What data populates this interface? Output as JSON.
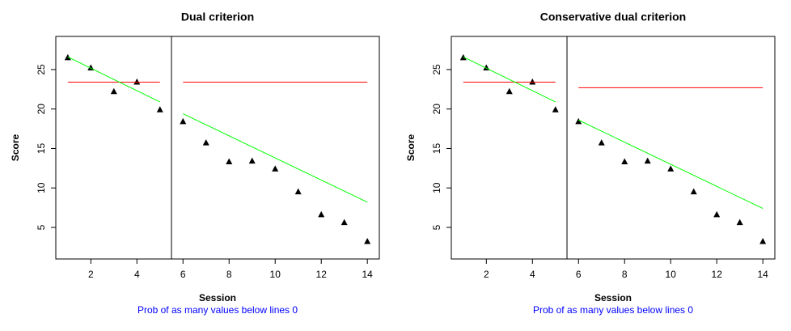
{
  "chart_data": [
    {
      "type": "scatter",
      "title": "Dual criterion",
      "x_label": "Session",
      "y_label": "Score",
      "note": "Prob of as many values below lines 0",
      "note_color": "#0000ff",
      "xlim": [
        0.48,
        14.52
      ],
      "ylim": [
        1.0,
        29.2
      ],
      "xticks": [
        2,
        4,
        6,
        8,
        10,
        12,
        14
      ],
      "yticks": [
        5,
        10,
        15,
        20,
        25
      ],
      "vlines": [
        5.5
      ],
      "series": [
        {
          "type": "scatter",
          "color": "#000000",
          "x": [
            1,
            2,
            3,
            4,
            5,
            6,
            7,
            8,
            9,
            10,
            11,
            12,
            13,
            14
          ],
          "values": [
            26.5,
            25.2,
            22.2,
            23.4,
            19.9,
            18.4,
            15.7,
            13.3,
            13.4,
            12.4,
            9.5,
            6.6,
            5.6,
            3.2
          ]
        },
        {
          "type": "line",
          "color": "#ff0000",
          "x": [
            1,
            5
          ],
          "values": [
            23.4,
            23.4
          ]
        },
        {
          "type": "line",
          "color": "#00ff00",
          "x": [
            1,
            5
          ],
          "values": [
            26.6,
            20.9
          ]
        },
        {
          "type": "line",
          "color": "#ff0000",
          "x": [
            6,
            14
          ],
          "values": [
            23.4,
            23.4
          ]
        },
        {
          "type": "line",
          "color": "#00ff00",
          "x": [
            6,
            14
          ],
          "values": [
            19.4,
            8.2
          ]
        }
      ]
    },
    {
      "type": "scatter",
      "title": "Conservative dual criterion",
      "x_label": "Session",
      "y_label": "Score",
      "note": "Prob of as many values below lines 0",
      "note_color": "#0000ff",
      "xlim": [
        0.48,
        14.52
      ],
      "ylim": [
        1.0,
        29.2
      ],
      "xticks": [
        2,
        4,
        6,
        8,
        10,
        12,
        14
      ],
      "yticks": [
        5,
        10,
        15,
        20,
        25
      ],
      "vlines": [
        5.5
      ],
      "series": [
        {
          "type": "scatter",
          "color": "#000000",
          "x": [
            1,
            2,
            3,
            4,
            5,
            6,
            7,
            8,
            9,
            10,
            11,
            12,
            13,
            14
          ],
          "values": [
            26.5,
            25.2,
            22.2,
            23.4,
            19.9,
            18.4,
            15.7,
            13.3,
            13.4,
            12.4,
            9.5,
            6.6,
            5.6,
            3.2
          ]
        },
        {
          "type": "line",
          "color": "#ff0000",
          "x": [
            1,
            5
          ],
          "values": [
            23.4,
            23.4
          ]
        },
        {
          "type": "line",
          "color": "#00ff00",
          "x": [
            1,
            5
          ],
          "values": [
            26.6,
            20.9
          ]
        },
        {
          "type": "line",
          "color": "#ff0000",
          "x": [
            6,
            14
          ],
          "values": [
            22.7,
            22.7
          ]
        },
        {
          "type": "line",
          "color": "#00ff00",
          "x": [
            6,
            14
          ],
          "values": [
            18.6,
            7.4
          ]
        }
      ]
    }
  ]
}
